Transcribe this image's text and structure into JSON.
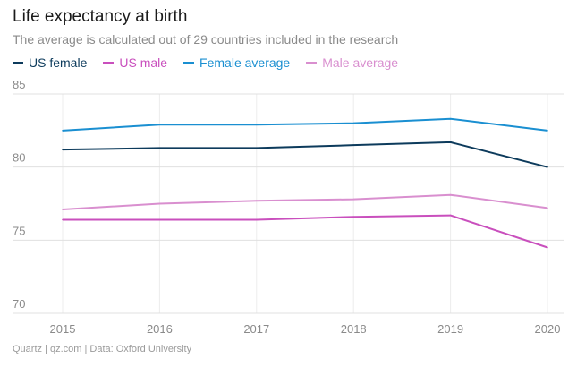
{
  "title": "Life expectancy at birth",
  "subtitle": "The average is calculated out of 29 countries included in the research",
  "footer": "Quartz | qz.com | Data: Oxford University",
  "chart_data": {
    "type": "line",
    "title": "Life expectancy at birth",
    "xlabel": "",
    "ylabel": "",
    "x": [
      "2015",
      "2016",
      "2017",
      "2018",
      "2019",
      "2020"
    ],
    "ylim": [
      70,
      85
    ],
    "yticks": [
      "70",
      "75",
      "80",
      "85"
    ],
    "grid": true,
    "legend": "top-left",
    "series": [
      {
        "name": "US female",
        "color": "#0d3b5c",
        "values": [
          81.2,
          81.3,
          81.3,
          81.5,
          81.7,
          80.0
        ]
      },
      {
        "name": "US male",
        "color": "#c94fbd",
        "values": [
          76.4,
          76.4,
          76.4,
          76.6,
          76.7,
          74.5
        ]
      },
      {
        "name": "Female average",
        "color": "#1a8fd1",
        "values": [
          82.5,
          82.9,
          82.9,
          83.0,
          83.3,
          82.5
        ]
      },
      {
        "name": "Male average",
        "color": "#d98fcf",
        "values": [
          77.1,
          77.5,
          77.7,
          77.8,
          78.1,
          77.2
        ]
      }
    ]
  }
}
